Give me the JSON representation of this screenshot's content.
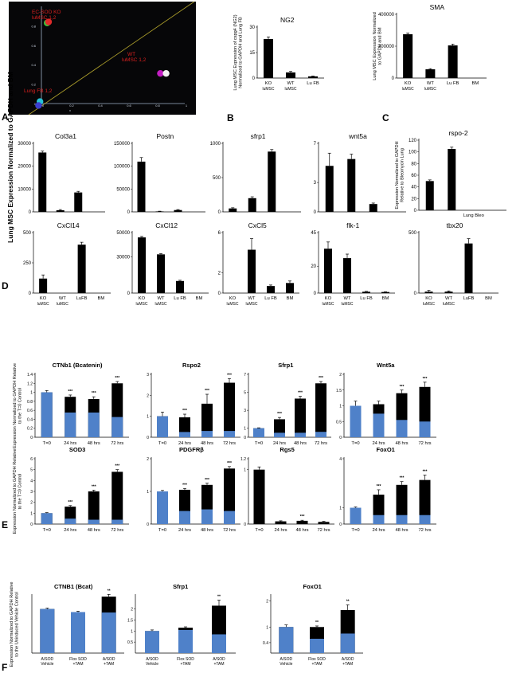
{
  "panel_letters": [
    "A",
    "B",
    "C",
    "D",
    "E",
    "F"
  ],
  "colors": {
    "black": "#000000",
    "blue": "#4f81c9",
    "scatter_bg": "#060608",
    "scatter_label": "#d9201f",
    "diagonal": "#a99b2a"
  },
  "scatter": {
    "label_ecsod": "EC-SOD KO luMSC 1,2",
    "label_wt": "WT luMSC 1,2",
    "label_lufb": "Lung FB 1,2",
    "y_ticks": [
      "0.8",
      "0.6",
      "0.4",
      "0.2",
      "0"
    ],
    "x_ticks": [
      "0",
      "0.2",
      "0.4",
      "0.6",
      "0.8",
      "1"
    ],
    "x_axis_letter": "x",
    "dots": [
      {
        "name": "ec-sod-dot-green",
        "x": 0.04,
        "y": 0.83,
        "color": "#3ec43e"
      },
      {
        "name": "ec-sod-dot-red",
        "x": 0.05,
        "y": 0.84,
        "color": "#e02a2a"
      },
      {
        "name": "wt-dot-magenta",
        "x": 0.83,
        "y": 0.31,
        "color": "#c21ec2"
      },
      {
        "name": "wt-dot-white",
        "x": 0.87,
        "y": 0.31,
        "color": "#f2f2f2"
      },
      {
        "name": "lufb-dot-cyan",
        "x": -0.01,
        "y": 0.02,
        "color": "#27c3d6"
      },
      {
        "name": "lufb-dot-blue",
        "x": -0.02,
        "y": -0.02,
        "color": "#3b3fd0"
      }
    ]
  },
  "chart_data": [
    {
      "id": "ng2",
      "type": "bar",
      "title": "NG2",
      "ylabel": "Lung MSC Expression of cspg4 (NG2) Normalized to GAPDH and Lung FB",
      "categories": [
        "KO",
        "WT",
        "Lu FB"
      ],
      "sublabels": [
        "luMSC",
        "luMSC",
        ""
      ],
      "values": [
        23,
        3.3,
        1
      ],
      "errors": [
        1.2,
        0.6,
        0.2
      ],
      "ylim": [
        0,
        30
      ],
      "yticks": [
        "0",
        "15",
        "30"
      ]
    },
    {
      "id": "sma",
      "type": "bar",
      "title": "SMA",
      "ylabel": "Lung MSC Expression Normalized to GAPDH and BM",
      "categories": [
        "KO",
        "WT",
        "Lu FB",
        "BM"
      ],
      "sublabels": [
        "luMSC",
        "luMSC",
        "",
        ""
      ],
      "values": [
        275000,
        55000,
        205000,
        0
      ],
      "errors": [
        8000,
        4000,
        8000,
        0
      ],
      "ylim": [
        0,
        400000
      ],
      "yticks": [
        "0",
        "200000",
        "400000"
      ]
    },
    {
      "id": "col3a1",
      "type": "bar",
      "title": "Col3a1",
      "categories": [
        "",
        "",
        "",
        ""
      ],
      "sublabels": [],
      "values": [
        26000,
        700,
        8500,
        0
      ],
      "errors": [
        600,
        300,
        500,
        0
      ],
      "ylim": [
        0,
        30000
      ],
      "yticks": [
        "0",
        "10000",
        "20000",
        "30000"
      ]
    },
    {
      "id": "postn",
      "type": "bar",
      "title": "Postn",
      "categories": [
        "",
        "",
        "",
        ""
      ],
      "sublabels": [],
      "values": [
        110000,
        1000,
        4000,
        0
      ],
      "errors": [
        9000,
        500,
        1000,
        0
      ],
      "ylim": [
        0,
        150000
      ],
      "yticks": [
        "0",
        "50000",
        "100000",
        "150000"
      ]
    },
    {
      "id": "sfrp1-d",
      "type": "bar",
      "title": "sfrp1",
      "categories": [
        "",
        "",
        "",
        ""
      ],
      "sublabels": [],
      "values": [
        50,
        200,
        880,
        0
      ],
      "errors": [
        10,
        20,
        30,
        0
      ],
      "ylim": [
        0,
        1000
      ],
      "yticks": [
        "0",
        "500",
        "1000"
      ]
    },
    {
      "id": "wnt5a-d",
      "type": "bar",
      "title": "wnt5a",
      "categories": [
        "",
        "",
        "",
        ""
      ],
      "sublabels": [],
      "values": [
        4.7,
        5.4,
        0.8,
        0
      ],
      "errors": [
        1.3,
        0.5,
        0.1,
        0
      ],
      "ylim": [
        0,
        7
      ],
      "yticks": [
        "0",
        "3",
        "7"
      ]
    },
    {
      "id": "rspo2",
      "type": "bar",
      "title": "rspo-2",
      "ylabel": "Expression Normalized to GAPDH Relative to Bleomycin Lung",
      "categories": [
        "",
        "",
        "Lung Bleo",
        ""
      ],
      "sublabels": [],
      "values": [
        50,
        105,
        0,
        0
      ],
      "errors": [
        2,
        3,
        0,
        0
      ],
      "ylim": [
        0,
        120
      ],
      "yticks": [
        "0",
        "20",
        "40",
        "60",
        "80",
        "100",
        "120"
      ]
    },
    {
      "id": "cxcl14",
      "type": "bar",
      "title": "CxCl14",
      "categories": [
        "KO",
        "WT",
        "LuFB",
        "BM"
      ],
      "sublabels": [
        "luMSC",
        "luMSC",
        "",
        ""
      ],
      "values": [
        120,
        0,
        400,
        0
      ],
      "errors": [
        30,
        0,
        20,
        0
      ],
      "ylim": [
        0,
        500
      ],
      "yticks": [
        "0",
        "250",
        "500"
      ]
    },
    {
      "id": "cxcl12",
      "type": "bar",
      "title": "CxCl12",
      "categories": [
        "KO",
        "WT",
        "Lu FB",
        "BM"
      ],
      "sublabels": [
        "luMSC",
        "luMSC",
        "",
        ""
      ],
      "values": [
        46000,
        32000,
        10000,
        0
      ],
      "errors": [
        800,
        600,
        600,
        0
      ],
      "ylim": [
        0,
        50000
      ],
      "yticks": [
        "0",
        "30000",
        "50000"
      ]
    },
    {
      "id": "cxcl5",
      "type": "bar",
      "title": "CxCl5",
      "categories": [
        "KO",
        "WT",
        "Lu FB",
        "BM"
      ],
      "sublabels": [
        "luMSC",
        "luMSC",
        "",
        ""
      ],
      "values": [
        0,
        4.3,
        0.7,
        1.0
      ],
      "errors": [
        0,
        1.1,
        0.1,
        0.2
      ],
      "ylim": [
        0,
        6
      ],
      "yticks": [
        "0",
        "2",
        "6"
      ]
    },
    {
      "id": "flk1",
      "type": "bar",
      "title": "flk-1",
      "categories": [
        "KO",
        "WT",
        "Lu FB",
        "BM"
      ],
      "sublabels": [
        "luMSC",
        "luMSC",
        "",
        ""
      ],
      "values": [
        33,
        26,
        1,
        0.8
      ],
      "errors": [
        5,
        3,
        0.3,
        0.2
      ],
      "ylim": [
        0,
        45
      ],
      "yticks": [
        "0",
        "20",
        "45"
      ]
    },
    {
      "id": "tbx20",
      "type": "bar",
      "title": "tbx20",
      "categories": [
        "KO",
        "WT",
        "LuFB",
        "BM"
      ],
      "sublabels": [
        "luMSC",
        "luMSC",
        "",
        ""
      ],
      "values": [
        12,
        12,
        410,
        0
      ],
      "errors": [
        10,
        6,
        40,
        0
      ],
      "ylim": [
        0,
        500
      ],
      "yticks": [
        "0",
        "500"
      ]
    },
    {
      "id": "ctnnb1",
      "type": "stacked-bar",
      "title": "CTNb1 (Bcatenin)",
      "ylabel": "Expression Normalized to GAPDH Relative to the T=0 Control",
      "categories": [
        "T=0",
        "24 hrs",
        "48 hrs",
        "72 hrs"
      ],
      "blue": [
        1.0,
        0.55,
        0.55,
        0.45
      ],
      "total": [
        1.0,
        0.9,
        0.85,
        1.2
      ],
      "errors": [
        0.04,
        0.04,
        0.05,
        0.04
      ],
      "sig": [
        "",
        "***",
        "***",
        "***"
      ],
      "ylim": [
        0,
        1.4
      ],
      "yticks": [
        "0",
        "0.2",
        "0.4",
        "0.6",
        "0.8",
        "1",
        "1.2",
        "1.4"
      ]
    },
    {
      "id": "rspo2-e",
      "type": "stacked-bar",
      "title": "Rspo2",
      "categories": [
        "T=0",
        "24 hrs",
        "48 hrs",
        "72 hrs"
      ],
      "blue": [
        1.0,
        0.25,
        0.3,
        0.3
      ],
      "total": [
        1.0,
        0.95,
        1.6,
        2.6
      ],
      "errors": [
        0.2,
        0.15,
        0.45,
        0.2
      ],
      "sig": [
        "",
        "***",
        "***",
        "***"
      ],
      "ylim": [
        0,
        3
      ],
      "yticks": [
        "0",
        "1",
        "2",
        "3"
      ]
    },
    {
      "id": "sfrp1-e",
      "type": "stacked-bar",
      "title": "Sfrp1",
      "categories": [
        "T=0",
        "24 hrs",
        "48 hrs",
        "72 hrs"
      ],
      "blue": [
        1.0,
        0.5,
        0.5,
        0.6
      ],
      "total": [
        1.0,
        2.0,
        4.3,
        6.0
      ],
      "errors": [
        0.05,
        0.2,
        0.25,
        0.2
      ],
      "sig": [
        "",
        "***",
        "***",
        "***"
      ],
      "ylim": [
        0,
        7
      ],
      "yticks": [
        "0",
        "1",
        "3",
        "5",
        "7"
      ]
    },
    {
      "id": "wnt5a-e",
      "type": "stacked-bar",
      "title": "Wnt5a",
      "categories": [
        "T=0",
        "24 hrs",
        "48 hrs",
        "72 hrs"
      ],
      "blue": [
        1.0,
        0.75,
        0.55,
        0.5
      ],
      "total": [
        1.0,
        1.05,
        1.4,
        1.6
      ],
      "errors": [
        0.15,
        0.1,
        0.1,
        0.15
      ],
      "sig": [
        "",
        "",
        "***",
        "***"
      ],
      "ylim": [
        0,
        2
      ],
      "yticks": [
        "0",
        "0.5",
        "1",
        "1.5",
        "2"
      ]
    },
    {
      "id": "sod3",
      "type": "stacked-bar",
      "title": "SOD3",
      "ylabel": "Expression Normalized to GAPDH Relative to the T=0 Control",
      "categories": [
        "T=0",
        "24 hrs",
        "48 hrs",
        "72 hrs"
      ],
      "blue": [
        1.0,
        0.5,
        0.4,
        0.4
      ],
      "total": [
        1.0,
        1.6,
        3.0,
        4.8
      ],
      "errors": [
        0.05,
        0.1,
        0.12,
        0.2
      ],
      "sig": [
        "",
        "***",
        "***",
        "***"
      ],
      "ylim": [
        0,
        6
      ],
      "yticks": [
        "0",
        "1",
        "2",
        "3",
        "4",
        "5",
        "6"
      ]
    },
    {
      "id": "pdgfrb",
      "type": "stacked-bar",
      "title": "PDGFRβ",
      "categories": [
        "T=0",
        "24 hrs",
        "48 hrs",
        "72 hrs"
      ],
      "blue": [
        1.0,
        0.4,
        0.45,
        0.4
      ],
      "total": [
        1.0,
        1.05,
        1.2,
        1.7
      ],
      "errors": [
        0.03,
        0.04,
        0.05,
        0.06
      ],
      "sig": [
        "",
        "***",
        "***",
        "***"
      ],
      "ylim": [
        0,
        2
      ],
      "yticks": [
        "0",
        "1",
        "2"
      ]
    },
    {
      "id": "rgs5",
      "type": "stacked-bar",
      "title": "Rgs5",
      "categories": [
        "T=0",
        "24 hrs",
        "48 hrs",
        "72 hrs"
      ],
      "blue": [
        0,
        0,
        0,
        0
      ],
      "total": [
        1.0,
        0.05,
        0.06,
        0.04
      ],
      "errors": [
        0.05,
        0.01,
        0.01,
        0.01
      ],
      "sig": [
        "",
        "",
        "***",
        ""
      ],
      "ylim": [
        0,
        1.2
      ],
      "yticks": [
        "0",
        "1",
        "1.2"
      ]
    },
    {
      "id": "foxo1-e",
      "type": "stacked-bar",
      "title": "FoxO1",
      "categories": [
        "T=0",
        "24 hrs",
        "48 hrs",
        "72 hrs"
      ],
      "blue": [
        1.0,
        0.55,
        0.55,
        0.55
      ],
      "total": [
        1.0,
        1.8,
        2.4,
        2.7
      ],
      "errors": [
        0.05,
        0.3,
        0.2,
        0.3
      ],
      "sig": [
        "",
        "***",
        "***",
        "***"
      ],
      "ylim": [
        0,
        4
      ],
      "yticks": [
        "0",
        "1",
        "4"
      ]
    },
    {
      "id": "ctnb1-f",
      "type": "stacked-bar",
      "title": "CTNB1 (Bcat)",
      "ylabel": "Expression Normalized to GAPDH Relative to the Uninduced Vehicle Control",
      "categories": [
        "A/SOD",
        "Flox SOD",
        "A/SOD"
      ],
      "sublabels": [
        "Vehicle",
        "+TAM",
        "+TAM"
      ],
      "blue": [
        1.0,
        0.93,
        0.92
      ],
      "total": [
        1.0,
        0.93,
        1.28
      ],
      "errors": [
        0.02,
        0.02,
        0.05
      ],
      "sig": [
        "",
        "",
        "**"
      ],
      "ylim": [
        0,
        1.3
      ],
      "yticks": []
    },
    {
      "id": "sfrp1-f",
      "type": "stacked-bar",
      "title": "Sfrp1",
      "categories": [
        "A/SOD",
        "Flox SOD",
        "A/SOD"
      ],
      "sublabels": [
        "Vehicle",
        "+TAM",
        "+TAM"
      ],
      "blue": [
        1.0,
        1.05,
        0.85
      ],
      "total": [
        1.0,
        1.15,
        2.15
      ],
      "errors": [
        0.05,
        0.04,
        0.25
      ],
      "sig": [
        "",
        "",
        "**"
      ],
      "ylim": [
        0,
        2.6
      ],
      "yticks": [
        "0.5",
        "1",
        "1.5",
        "2"
      ]
    },
    {
      "id": "foxo1-f",
      "type": "stacked-bar",
      "title": "FoxO1",
      "categories": [
        "A/SOD",
        "Flox SOD",
        "A/SOD"
      ],
      "sublabels": [
        "Vehicle",
        "+TAM",
        "+TAM"
      ],
      "blue": [
        1.0,
        0.55,
        0.75
      ],
      "total": [
        1.0,
        1.0,
        1.65
      ],
      "errors": [
        0.08,
        0.04,
        0.2
      ],
      "sig": [
        "",
        "**",
        "**"
      ],
      "ylim": [
        0,
        2.2
      ],
      "yticks": [
        "0.4",
        "1",
        "2"
      ]
    }
  ],
  "d_shared_ylabel": "Lung MSC Expression Normalized to GAPDH and BM"
}
